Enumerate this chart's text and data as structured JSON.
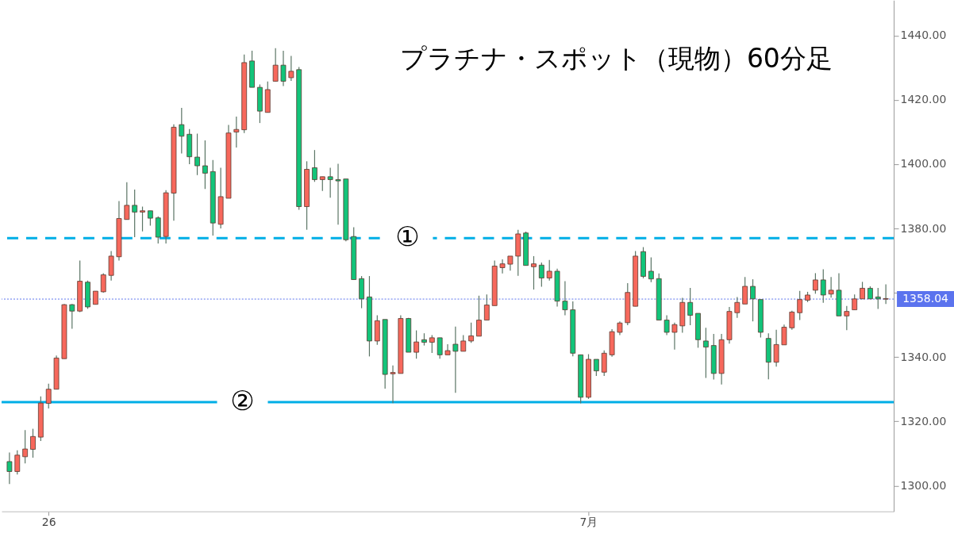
{
  "chart_data": {
    "type": "candlestick",
    "title": "プラチナ・スポット（現物）60分足",
    "categories": [
      null,
      null,
      null,
      null,
      null,
      "26",
      null,
      null,
      null,
      null,
      null,
      null,
      null,
      null,
      null,
      null,
      null,
      null,
      null,
      null,
      null,
      null,
      null,
      null,
      null,
      null,
      null,
      null,
      null,
      null,
      null,
      null,
      null,
      null,
      null,
      null,
      null,
      null,
      null,
      null,
      null,
      null,
      null,
      null,
      null,
      null,
      null,
      null,
      null,
      null,
      null,
      null,
      null,
      null,
      null,
      null,
      null,
      null,
      null,
      null,
      null,
      null,
      null,
      null,
      null,
      null,
      null,
      null,
      null,
      null,
      null,
      null,
      null,
      null,
      "7月",
      null,
      null,
      null,
      null,
      null,
      null,
      null,
      null,
      null,
      null,
      null,
      null,
      null,
      null,
      null,
      null,
      null,
      null,
      null,
      null,
      null,
      null,
      null,
      null,
      null,
      null,
      null,
      null,
      null,
      null,
      null,
      null,
      null,
      null,
      null,
      null,
      null,
      null
    ],
    "ohlc": [
      [
        1307.5,
        1310.3,
        1300.5,
        1304.4
      ],
      [
        1304.4,
        1311.0,
        1303.5,
        1309.5
      ],
      [
        1309.0,
        1317.3,
        1306.9,
        1311.4
      ],
      [
        1311.3,
        1317.7,
        1308.7,
        1315.3
      ],
      [
        1315.1,
        1327.8,
        1313.9,
        1325.7
      ],
      [
        1325.6,
        1331.7,
        1324.0,
        1330.0
      ],
      [
        1330.0,
        1340.5,
        1330.0,
        1339.7
      ],
      [
        1339.5,
        1356.5,
        1339.5,
        1356.3
      ],
      [
        1356.3,
        1356.5,
        1348.8,
        1354.3
      ],
      [
        1354.3,
        1370.0,
        1354.0,
        1363.6
      ],
      [
        1363.3,
        1363.8,
        1355.0,
        1355.6
      ],
      [
        1356.4,
        1360.5,
        1356.4,
        1360.5
      ],
      [
        1360.3,
        1366.1,
        1360.0,
        1365.6
      ],
      [
        1365.4,
        1373.0,
        1363.8,
        1371.4
      ],
      [
        1371.2,
        1388.5,
        1370.0,
        1383.1
      ],
      [
        1382.8,
        1394.4,
        1382.8,
        1387.2
      ],
      [
        1387.2,
        1392.1,
        1377.3,
        1385.1
      ],
      [
        1385.1,
        1386.8,
        1379.1,
        1385.5
      ],
      [
        1385.5,
        1385.5,
        1380.9,
        1383.2
      ],
      [
        1383.3,
        1383.8,
        1375.3,
        1377.3
      ],
      [
        1377.5,
        1391.9,
        1375.3,
        1391.1
      ],
      [
        1391.0,
        1412.4,
        1382.4,
        1411.5
      ],
      [
        1412.3,
        1417.5,
        1403.3,
        1408.7
      ],
      [
        1409.3,
        1410.9,
        1400.0,
        1402.3
      ],
      [
        1402.2,
        1409.5,
        1396.6,
        1399.5
      ],
      [
        1399.5,
        1407.4,
        1392.3,
        1397.2
      ],
      [
        1397.7,
        1401.3,
        1377.8,
        1381.7
      ],
      [
        1381.3,
        1398.9,
        1380.0,
        1389.9
      ],
      [
        1389.4,
        1412.2,
        1389.4,
        1409.7
      ],
      [
        1410.0,
        1414.8,
        1405.2,
        1410.8
      ],
      [
        1410.7,
        1434.1,
        1409.7,
        1431.6
      ],
      [
        1432.1,
        1435.3,
        1423.9,
        1423.9
      ],
      [
        1423.9,
        1424.8,
        1412.8,
        1416.5
      ],
      [
        1416.1,
        1425.7,
        1416.1,
        1423.2
      ],
      [
        1425.8,
        1436.1,
        1425.8,
        1430.8
      ],
      [
        1430.8,
        1435.3,
        1424.3,
        1425.8
      ],
      [
        1426.9,
        1433.7,
        1425.9,
        1428.9
      ],
      [
        1429.4,
        1430.2,
        1385.8,
        1386.8
      ],
      [
        1386.8,
        1400.9,
        1379.6,
        1398.4
      ],
      [
        1398.9,
        1404.4,
        1394.5,
        1395.2
      ],
      [
        1395.2,
        1396.1,
        1391.7,
        1396.1
      ],
      [
        1396.1,
        1398.9,
        1389.6,
        1395.2
      ],
      [
        1395.2,
        1400.1,
        1381.2,
        1394.8
      ],
      [
        1395.4,
        1395.4,
        1376.0,
        1376.5
      ],
      [
        1377.5,
        1380.4,
        1364.1,
        1364.1
      ],
      [
        1364.4,
        1365.2,
        1355.2,
        1358.1
      ],
      [
        1358.7,
        1365.2,
        1340.2,
        1345.0
      ],
      [
        1345.0,
        1353.0,
        1343.8,
        1351.3
      ],
      [
        1351.7,
        1351.7,
        1330.2,
        1334.6
      ],
      [
        1334.8,
        1337.4,
        1325.7,
        1335.2
      ],
      [
        1334.9,
        1353.0,
        1334.9,
        1352.0
      ],
      [
        1352.0,
        1352.2,
        1341.5,
        1341.5
      ],
      [
        1341.5,
        1348.3,
        1339.5,
        1344.7
      ],
      [
        1345.4,
        1347.4,
        1343.6,
        1344.6
      ],
      [
        1344.6,
        1346.8,
        1341.3,
        1346.0
      ],
      [
        1346.0,
        1346.0,
        1339.5,
        1340.7
      ],
      [
        1340.7,
        1344.0,
        1340.7,
        1342.0
      ],
      [
        1344.0,
        1349.5,
        1328.9,
        1341.8
      ],
      [
        1341.8,
        1346.8,
        1341.8,
        1345.0
      ],
      [
        1345.0,
        1350.7,
        1344.4,
        1346.6
      ],
      [
        1346.5,
        1359.1,
        1346.5,
        1351.5
      ],
      [
        1351.5,
        1359.5,
        1351.5,
        1356.2
      ],
      [
        1356.0,
        1370.0,
        1356.0,
        1368.3
      ],
      [
        1367.8,
        1370.4,
        1366.0,
        1369.0
      ],
      [
        1368.9,
        1371.4,
        1366.9,
        1371.4
      ],
      [
        1371.4,
        1379.6,
        1365.3,
        1378.3
      ],
      [
        1378.6,
        1379.0,
        1368.5,
        1368.5
      ],
      [
        1368.1,
        1371.4,
        1361.0,
        1369.0
      ],
      [
        1368.6,
        1369.4,
        1361.9,
        1364.6
      ],
      [
        1364.6,
        1370.2,
        1363.8,
        1366.7
      ],
      [
        1366.7,
        1367.5,
        1355.7,
        1357.4
      ],
      [
        1357.4,
        1363.6,
        1353.0,
        1354.7
      ],
      [
        1354.7,
        1357.3,
        1340.2,
        1341.2
      ],
      [
        1340.7,
        1340.7,
        1325.6,
        1327.5
      ],
      [
        1327.5,
        1340.9,
        1327.0,
        1339.3
      ],
      [
        1339.3,
        1339.3,
        1334.1,
        1335.7
      ],
      [
        1335.3,
        1342.1,
        1334.1,
        1341.2
      ],
      [
        1340.7,
        1348.7,
        1340.1,
        1347.9
      ],
      [
        1347.7,
        1351.1,
        1346.8,
        1350.6
      ],
      [
        1350.7,
        1363.0,
        1349.9,
        1360.1
      ],
      [
        1355.8,
        1373.0,
        1355.8,
        1371.4
      ],
      [
        1372.8,
        1374.2,
        1364.5,
        1365.1
      ],
      [
        1366.7,
        1371.0,
        1363.3,
        1364.3
      ],
      [
        1364.4,
        1366.0,
        1351.5,
        1351.5
      ],
      [
        1351.5,
        1353.0,
        1346.8,
        1347.7
      ],
      [
        1347.7,
        1350.7,
        1342.3,
        1350.1
      ],
      [
        1349.7,
        1358.4,
        1347.6,
        1357.0
      ],
      [
        1357.0,
        1361.5,
        1349.9,
        1353.0
      ],
      [
        1353.6,
        1353.6,
        1342.9,
        1345.4
      ],
      [
        1345.0,
        1349.1,
        1333.5,
        1343.1
      ],
      [
        1343.6,
        1347.2,
        1333.0,
        1334.9
      ],
      [
        1334.9,
        1347.2,
        1331.5,
        1345.4
      ],
      [
        1345.4,
        1355.6,
        1344.2,
        1354.2
      ],
      [
        1353.8,
        1358.7,
        1352.2,
        1357.0
      ],
      [
        1356.5,
        1364.9,
        1356.5,
        1362.0
      ],
      [
        1362.0,
        1364.2,
        1351.1,
        1358.1
      ],
      [
        1357.9,
        1357.9,
        1346.1,
        1347.7
      ],
      [
        1345.8,
        1347.4,
        1333.1,
        1338.4
      ],
      [
        1338.4,
        1348.5,
        1337.0,
        1343.9
      ],
      [
        1343.8,
        1350.1,
        1343.8,
        1349.3
      ],
      [
        1349.1,
        1354.4,
        1348.5,
        1354.0
      ],
      [
        1353.8,
        1360.6,
        1351.5,
        1357.9
      ],
      [
        1357.7,
        1360.3,
        1357.1,
        1359.3
      ],
      [
        1360.8,
        1366.1,
        1359.7,
        1364.0
      ],
      [
        1364.0,
        1367.3,
        1356.9,
        1359.3
      ],
      [
        1359.6,
        1364.9,
        1358.5,
        1360.8
      ],
      [
        1360.8,
        1366.1,
        1352.8,
        1352.8
      ],
      [
        1352.8,
        1355.9,
        1348.4,
        1354.2
      ],
      [
        1354.7,
        1359.5,
        1354.7,
        1358.1
      ],
      [
        1358.1,
        1363.4,
        1358.1,
        1361.4
      ],
      [
        1361.4,
        1362.0,
        1358.1,
        1358.1
      ],
      [
        1358.7,
        1361.5,
        1355.0,
        1358.1
      ],
      [
        1358.0,
        1362.6,
        1356.5,
        1358.2
      ]
    ],
    "colors": [
      "#12c47a",
      "#f7685c",
      "#f7685c",
      "#f7685c",
      "#f7685c",
      "#f7685c",
      "#f7685c",
      "#f7685c",
      "#12c47a",
      "#f7685c",
      "#12c47a",
      "#f7685c",
      "#f7685c",
      "#f7685c",
      "#f7685c",
      "#f7685c",
      "#12c47a",
      "#f7685c",
      "#12c47a",
      "#12c47a",
      "#f7685c",
      "#f7685c",
      "#12c47a",
      "#12c47a",
      "#12c47a",
      "#12c47a",
      "#12c47a",
      "#f7685c",
      "#f7685c",
      "#f7685c",
      "#f7685c",
      "#12c47a",
      "#12c47a",
      "#f7685c",
      "#f7685c",
      "#12c47a",
      "#f7685c",
      "#12c47a",
      "#f7685c",
      "#12c47a",
      "#f7685c",
      "#12c47a",
      "#12c47a",
      "#12c47a",
      "#12c47a",
      "#12c47a",
      "#12c47a",
      "#f7685c",
      "#12c47a",
      "#f7685c",
      "#f7685c",
      "#12c47a",
      "#f7685c",
      "#12c47a",
      "#f7685c",
      "#12c47a",
      "#f7685c",
      "#12c47a",
      "#f7685c",
      "#f7685c",
      "#f7685c",
      "#f7685c",
      "#f7685c",
      "#f7685c",
      "#f7685c",
      "#f7685c",
      "#12c47a",
      "#f7685c",
      "#12c47a",
      "#f7685c",
      "#12c47a",
      "#12c47a",
      "#12c47a",
      "#12c47a",
      "#f7685c",
      "#12c47a",
      "#f7685c",
      "#f7685c",
      "#f7685c",
      "#f7685c",
      "#f7685c",
      "#12c47a",
      "#12c47a",
      "#12c47a",
      "#12c47a",
      "#f7685c",
      "#f7685c",
      "#12c47a",
      "#12c47a",
      "#12c47a",
      "#12c47a",
      "#f7685c",
      "#f7685c",
      "#f7685c",
      "#f7685c",
      "#12c47a",
      "#12c47a",
      "#12c47a",
      "#f7685c",
      "#f7685c",
      "#f7685c",
      "#f7685c",
      "#f7685c",
      "#f7685c",
      "#12c47a",
      "#f7685c",
      "#12c47a",
      "#f7685c",
      "#f7685c",
      "#f7685c",
      "#12c47a",
      "#12c47a",
      "#f7685c"
    ],
    "ylim": [
      1292,
      1451
    ],
    "yticks": [
      {
        "value": 1300,
        "label": "1300.00"
      },
      {
        "value": 1320,
        "label": "1320.00"
      },
      {
        "value": 1340,
        "label": "1340.00"
      },
      {
        "value": 1360,
        "label": null
      },
      {
        "value": 1380,
        "label": "1380.00"
      },
      {
        "value": 1400,
        "label": "1400.00"
      },
      {
        "value": 1420,
        "label": "1420.00"
      },
      {
        "value": 1440,
        "label": "1440.00"
      }
    ],
    "ref_lines": [
      {
        "axis": "y",
        "value": 1377,
        "label": "①",
        "color": "#00aee6",
        "line_style": "dashed"
      },
      {
        "axis": "y",
        "value": 1326,
        "label": "②",
        "color": "#00aee6",
        "line_style": "solid"
      },
      {
        "axis": "y",
        "value": 1358.04,
        "label": "1358.04",
        "color": "#5b73ee",
        "line_style": "dotted"
      }
    ],
    "grid": false
  }
}
